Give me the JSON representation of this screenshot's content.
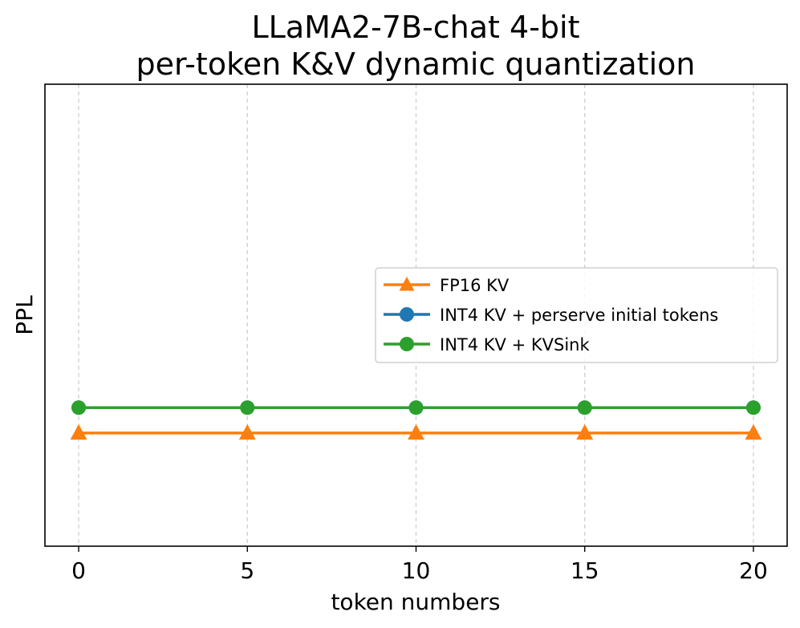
{
  "chart_data": {
    "type": "line",
    "title": [
      "LLaMA2-7B-chat 4-bit",
      "per-token K&V dynamic quantization"
    ],
    "xlabel": "token numbers",
    "ylabel": "PPL",
    "x": [
      0,
      5,
      10,
      15,
      20
    ],
    "x_ticks": [
      "0",
      "5",
      "10",
      "15",
      "20"
    ],
    "xlim": [
      -1,
      21
    ],
    "ylim": [
      0,
      1
    ],
    "y_ticks_visible": false,
    "grid": "x-dashed",
    "legend_position": "center-right",
    "series": [
      {
        "name": "FP16 KV",
        "color": "#ff7f0e",
        "marker": "triangle-up",
        "values": [
          0.245,
          0.245,
          0.245,
          0.245,
          0.245
        ]
      },
      {
        "name": "INT4 KV + perserve initial tokens",
        "color": "#1f77b4",
        "marker": "circle",
        "values": [
          0.3,
          0.3,
          0.3,
          0.3,
          0.3
        ]
      },
      {
        "name": "INT4 KV + KVSink",
        "color": "#2ca02c",
        "marker": "circle",
        "values": [
          0.3,
          0.3,
          0.3,
          0.3,
          0.3
        ]
      }
    ]
  }
}
